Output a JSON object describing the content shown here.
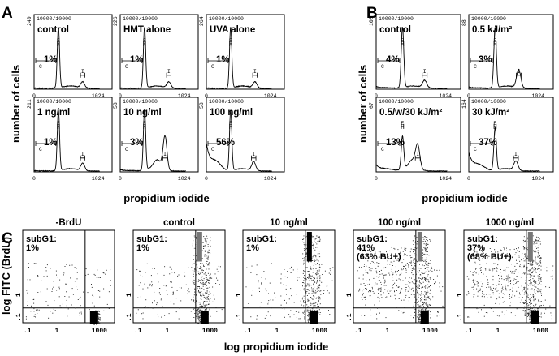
{
  "figure": {
    "panel_letters": [
      "A",
      "B",
      "C"
    ],
    "counts_label": "10000/10000",
    "gate_labels": {
      "c": "C",
      "e": "E",
      "i": "I"
    },
    "histogram_x_tick_start": "0",
    "histogram_x_tick_end": "1024",
    "scatter_x_ticks": [
      ".1",
      "1",
      "1000"
    ],
    "scatter_y_ticks": [
      ".1",
      "1"
    ]
  },
  "panel_A": {
    "ylabel": "number of cells",
    "xlabel": "propidium iodide",
    "histograms": [
      {
        "title": "control",
        "ymax": "240",
        "subg1": "1%"
      },
      {
        "title": "HMT alone",
        "ymax": "226",
        "subg1": "1%"
      },
      {
        "title": "UVA alone",
        "ymax": "264",
        "subg1": "1%"
      },
      {
        "title": "1 ng/ml",
        "ymax": "211",
        "subg1": "1%"
      },
      {
        "title": "10 ng/ml",
        "ymax": "58",
        "subg1": "3%"
      },
      {
        "title": "100 ng/ml",
        "ymax": "58",
        "subg1": "56%"
      }
    ]
  },
  "panel_B": {
    "ylabel": "number of cells",
    "xlabel": "propidium iodide",
    "histograms": [
      {
        "title": "control",
        "ymax": "108",
        "subg1": "4%"
      },
      {
        "title": "0.5 kJ/m²",
        "ymax": "88",
        "subg1": "3%"
      },
      {
        "title": "0.5/w/30 kJ/m²",
        "ymax": "67",
        "subg1": "13%"
      },
      {
        "title": "30 kJ/m²",
        "ymax": "164",
        "subg1": "37%"
      }
    ]
  },
  "panel_C": {
    "ylabel": "log FITC (BrdU)",
    "xlabel": "log propidium iodide",
    "scatter_plots": [
      {
        "title": "-BrdU",
        "label": "subG1:",
        "value": "1%",
        "extra": ""
      },
      {
        "title": "control",
        "label": "subG1:",
        "value": "1%",
        "extra": ""
      },
      {
        "title": "10 ng/ml",
        "label": "subG1:",
        "value": "1%",
        "extra": ""
      },
      {
        "title": "100 ng/ml",
        "label": "subG1:",
        "value": "41%",
        "extra": "(63% BU+)"
      },
      {
        "title": "1000 ng/ml",
        "label": "subG1:",
        "value": "37%",
        "extra": "(68% BU+)"
      }
    ]
  },
  "chart_data": [
    {
      "type": "line",
      "panel": "A",
      "xlabel": "propidium iodide",
      "ylabel": "number of cells",
      "xlim": [
        0,
        1024
      ],
      "profiles": [
        {
          "subplot": "control",
          "subg1": 1,
          "g1_peak": [
            380,
            1.0
          ],
          "g2_peak": [
            760,
            0.1
          ]
        },
        {
          "subplot": "HMT alone",
          "subg1": 1,
          "g1_peak": [
            380,
            1.0
          ],
          "g2_peak": [
            760,
            0.1
          ]
        },
        {
          "subplot": "UVA alone",
          "subg1": 1,
          "g1_peak": [
            380,
            1.0
          ],
          "g2_peak": [
            760,
            0.1
          ]
        },
        {
          "subplot": "1 ng/ml",
          "subg1": 1,
          "g1_peak": [
            380,
            1.0
          ],
          "g2_peak": [
            760,
            0.12
          ]
        },
        {
          "subplot": "10 ng/ml",
          "subg1": 3,
          "g1_peak": [
            380,
            1.0
          ],
          "g2_peak": [
            700,
            0.55
          ]
        },
        {
          "subplot": "100 ng/ml",
          "subg1": 56,
          "g1_peak": [
            380,
            1.0
          ],
          "g2_peak": [
            740,
            0.15
          ]
        }
      ]
    },
    {
      "type": "line",
      "panel": "B",
      "xlabel": "propidium iodide",
      "ylabel": "number of cells",
      "xlim": [
        0,
        1024
      ],
      "profiles": [
        {
          "subplot": "control",
          "subg1": 4,
          "g1_peak": [
            380,
            1.0
          ],
          "g2_peak": [
            700,
            0.12
          ]
        },
        {
          "subplot": "0.5 kJ/m²",
          "subg1": 3,
          "g1_peak": [
            380,
            1.0
          ],
          "g2_peak": [
            720,
            0.3
          ]
        },
        {
          "subplot": "0.5/w/30 kJ/m²",
          "subg1": 13,
          "g1_peak": [
            380,
            0.55
          ],
          "g2_peak": [
            600,
            0.35
          ]
        },
        {
          "subplot": "30 kJ/m²",
          "subg1": 37,
          "g1_peak": [
            380,
            0.7
          ],
          "g2_peak": [
            680,
            0.15
          ]
        }
      ]
    },
    {
      "type": "scatter",
      "panel": "C",
      "xlabel": "log propidium iodide",
      "ylabel": "log FITC (BrdU)",
      "x_scale": "log",
      "y_scale": "log",
      "subplots": [
        {
          "title": "-BrdU",
          "subg1_percent": 1,
          "brdu_positive_percent": null
        },
        {
          "title": "control",
          "subg1_percent": 1,
          "brdu_positive_percent": null
        },
        {
          "title": "10 ng/ml",
          "subg1_percent": 1,
          "brdu_positive_percent": null
        },
        {
          "title": "100 ng/ml",
          "subg1_percent": 41,
          "brdu_positive_percent": 63
        },
        {
          "title": "1000 ng/ml",
          "subg1_percent": 37,
          "brdu_positive_percent": 68
        }
      ]
    }
  ]
}
